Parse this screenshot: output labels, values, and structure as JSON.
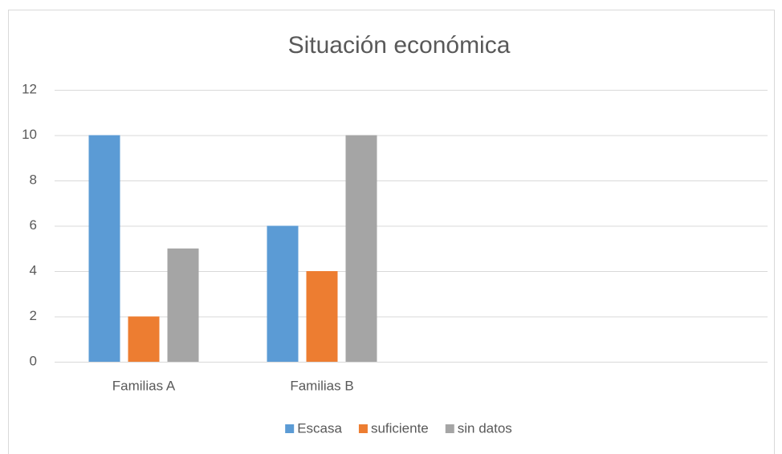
{
  "chart_data": {
    "type": "bar",
    "title": "Situación económica",
    "categories": [
      "Familias A",
      "Familias B",
      null,
      null
    ],
    "series": [
      {
        "name": "Escasa",
        "color": "#5b9bd5",
        "values": [
          10,
          6,
          null,
          null
        ]
      },
      {
        "name": "suficiente",
        "color": "#ed7d31",
        "values": [
          2,
          4,
          null,
          null
        ]
      },
      {
        "name": "sin datos",
        "color": "#a5a5a5",
        "values": [
          5,
          10,
          null,
          null
        ]
      }
    ],
    "ylim": [
      0,
      12
    ],
    "yticks": [
      0,
      2,
      4,
      6,
      8,
      10,
      12
    ],
    "grid": true,
    "legend": "bottom"
  }
}
